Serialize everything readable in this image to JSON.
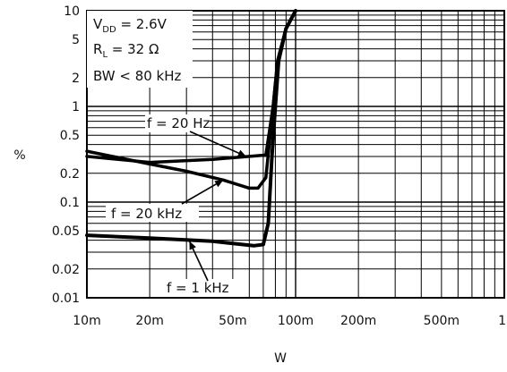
{
  "chart_data": {
    "type": "line",
    "xlabel": "W",
    "ylabel": "%",
    "x_scale": "log",
    "y_scale": "log",
    "xlim": [
      0.01,
      1
    ],
    "ylim": [
      0.01,
      10
    ],
    "grid": true,
    "x_ticks": [
      {
        "value": 0.01,
        "label": "10m"
      },
      {
        "value": 0.02,
        "label": "20m"
      },
      {
        "value": 0.05,
        "label": "50m"
      },
      {
        "value": 0.1,
        "label": "100m"
      },
      {
        "value": 0.2,
        "label": "200m"
      },
      {
        "value": 0.5,
        "label": "500m"
      },
      {
        "value": 1,
        "label": "1"
      }
    ],
    "y_ticks": [
      {
        "value": 10,
        "label": "10"
      },
      {
        "value": 5,
        "label": "5"
      },
      {
        "value": 2,
        "label": "2"
      },
      {
        "value": 1,
        "label": "1"
      },
      {
        "value": 0.5,
        "label": "0.5"
      },
      {
        "value": 0.2,
        "label": "0.2"
      },
      {
        "value": 0.1,
        "label": "0.1"
      },
      {
        "value": 0.05,
        "label": "0.05"
      },
      {
        "value": 0.02,
        "label": "0.02"
      },
      {
        "value": 0.01,
        "label": "0.01"
      }
    ],
    "conditions": {
      "vdd": {
        "main": "V",
        "sub": "DD",
        "rest": " = 2.6V"
      },
      "rl": {
        "main": "R",
        "sub": "L",
        "rest": " = 32 Ω"
      },
      "bw": "BW < 80 kHz"
    },
    "series": [
      {
        "name": "f = 20 Hz",
        "values": [
          [
            0.01,
            0.3
          ],
          [
            0.02,
            0.26
          ],
          [
            0.04,
            0.28
          ],
          [
            0.06,
            0.3
          ],
          [
            0.072,
            0.31
          ],
          [
            0.078,
            1.0
          ],
          [
            0.082,
            3.0
          ],
          [
            0.09,
            6.5
          ],
          [
            0.1,
            10
          ]
        ]
      },
      {
        "name": "f = 20 kHz",
        "values": [
          [
            0.01,
            0.34
          ],
          [
            0.02,
            0.25
          ],
          [
            0.03,
            0.21
          ],
          [
            0.045,
            0.17
          ],
          [
            0.06,
            0.14
          ],
          [
            0.066,
            0.14
          ],
          [
            0.072,
            0.18
          ],
          [
            0.078,
            1.0
          ],
          [
            0.082,
            3.0
          ],
          [
            0.09,
            6.5
          ],
          [
            0.1,
            10
          ]
        ]
      },
      {
        "name": "f = 1 kHz",
        "values": [
          [
            0.01,
            0.045
          ],
          [
            0.02,
            0.042
          ],
          [
            0.04,
            0.039
          ],
          [
            0.063,
            0.035
          ],
          [
            0.07,
            0.036
          ],
          [
            0.074,
            0.06
          ],
          [
            0.077,
            0.3
          ],
          [
            0.08,
            1.0
          ],
          [
            0.083,
            3.0
          ],
          [
            0.09,
            6.5
          ],
          [
            0.1,
            10
          ]
        ]
      }
    ],
    "annotations": [
      {
        "text": "f = 20 Hz",
        "series": "f = 20 Hz",
        "arrow_to": [
          0.058,
          0.3
        ]
      },
      {
        "text": "f = 20 kHz",
        "series": "f = 20 kHz",
        "arrow_to": [
          0.045,
          0.17
        ]
      },
      {
        "text": "f = 1 kHz",
        "series": "f = 1 kHz",
        "arrow_to": [
          0.031,
          0.039
        ]
      }
    ]
  }
}
